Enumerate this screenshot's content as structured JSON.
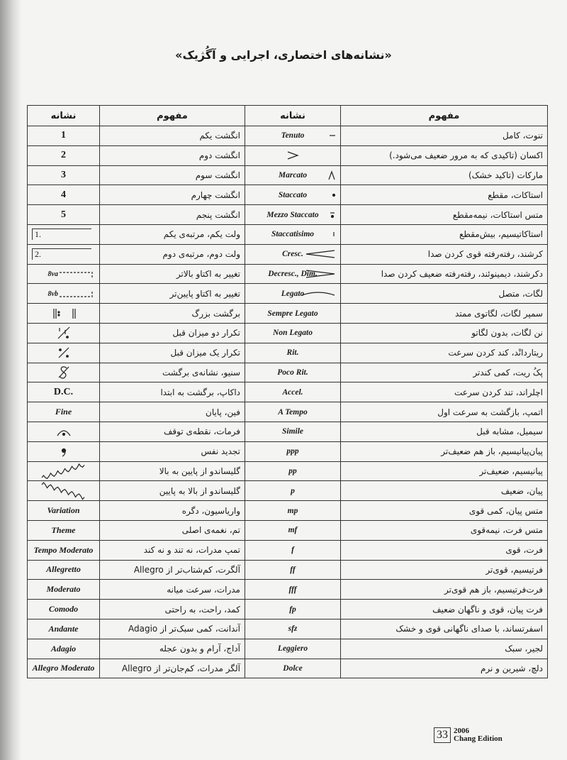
{
  "title": "«نشانه‌های اختصاری، اجرایی و آگُژیک»",
  "table": {
    "headers": [
      "نشانه",
      "مفهوم",
      "نشانه",
      "مفهوم"
    ],
    "rows": [
      {
        "sign_l": "1",
        "concept_l": "انگشت یکم",
        "term_r": "Tenuto",
        "concept_r": "تنوت، کامل"
      },
      {
        "sign_l": "2",
        "concept_l": "انگشت دوم",
        "concept_r": "اکسان (تاکیدی که به مرور ضعیف می‌شود.)"
      },
      {
        "sign_l": "3",
        "concept_l": "انگشت سوم",
        "term_r": "Marcato",
        "concept_r": "مارکات (تاکید خشک)"
      },
      {
        "sign_l": "4",
        "concept_l": "انگشت چهارم",
        "term_r": "Staccato",
        "concept_r": "استاکات، مقطع"
      },
      {
        "sign_l": "5",
        "concept_l": "انگشت پنجم",
        "term_r": "Mezzo Staccato",
        "concept_r": "متس استاکات، نیمه‌مقطع"
      },
      {
        "sign_l": "1.",
        "concept_l": "ولت یکم، مرتبه‌ی یکم",
        "term_r": "Staccatisimo",
        "concept_r": "استاکاتیسیم، بیش‌مقطع"
      },
      {
        "sign_l": "2.",
        "concept_l": "ولت دوم، مرتبه‌ی دوم",
        "term_r": "Cresc.",
        "concept_r": "کرشند، رفته‌رفته قوی کردن صدا"
      },
      {
        "sign_l": "8va",
        "concept_l": "تغییر به اکتاو بالاتر",
        "term_r": "Decresc., Dim.",
        "concept_r": "دکرشند، دیمینوئند، رفته‌رفته ضعیف کردن صدا"
      },
      {
        "sign_l": "8vb",
        "concept_l": "تغییر به اکتاو پایین‌تر",
        "term_r": "Legato",
        "concept_r": "لگات، متصل"
      },
      {
        "concept_l": "برگشت بزرگ",
        "term_r": "Sempre Legato",
        "concept_r": "سمپر لگات، لگاتوی ممتد"
      },
      {
        "concept_l": "تکرار دو میزان قبل",
        "term_r": "Non Legato",
        "concept_r": "نن لگات، بدون لگاتو"
      },
      {
        "concept_l": "تکرار یک میزان قبل",
        "term_r": "Rit.",
        "concept_r": "ریتاردانْد، کند کردن سرعت"
      },
      {
        "concept_l": "سنیو، نشانه‌ی برگشت",
        "term_r": "Poco Rit.",
        "concept_r": "پکُ ریت، کمی کندتر"
      },
      {
        "sign_l": "D.C.",
        "concept_l": "داکاپ، برگشت به ابتدا",
        "term_r": "Accel.",
        "concept_r": "اچلراند، تند کردن سرعت"
      },
      {
        "sign_l": "Fine",
        "concept_l": "فین، پایان",
        "term_r": "A Tempo",
        "concept_r": "اتمپ، بازگشت به سرعت اول"
      },
      {
        "concept_l": "فرمات، نقطه‌ی توقف",
        "term_r": "Simile",
        "concept_r": "سیمیل، مشابه قبل"
      },
      {
        "concept_l": "تجدید نفس",
        "term_r": "ppp",
        "concept_r": "پیان‌پیانیسیم، باز هم ضعیف‌تر"
      },
      {
        "concept_l": "گلیساندو از پایین به بالا",
        "term_r": "pp",
        "concept_r": "پیانیسیم، ضعیف‌تر"
      },
      {
        "concept_l": "گلیساندو از بالا به پایین",
        "term_r": "p",
        "concept_r": "پیان، ضعیف"
      },
      {
        "sign_l": "Variation",
        "concept_l": "واریاسیون، دگره",
        "term_r": "mp",
        "concept_r": "متس پیان، کمی قوی"
      },
      {
        "sign_l": "Theme",
        "concept_l": "تم، نغمه‌ی اصلی",
        "term_r": "mf",
        "concept_r": "متس فرت، نیمه‌قوی"
      },
      {
        "sign_l": "Tempo Moderato",
        "concept_l": "تمپ مدرات، نه تند و نه کند",
        "term_r": "f",
        "concept_r": "فرت، قوی"
      },
      {
        "sign_l": "Allegretto",
        "concept_l": "آلگرت، کم‌شتاب‌تر از Allegro",
        "term_r": "ff",
        "concept_r": "فرتیسیم، قوی‌تر"
      },
      {
        "sign_l": "Moderato",
        "concept_l": "مدرات، سرعت میانه",
        "term_r": "fff",
        "concept_r": "فرت‌فرتیسیم، باز هم قوی‌تر"
      },
      {
        "sign_l": "Comodo",
        "concept_l": "کمد، راحت، به راحتی",
        "term_r": "fp",
        "concept_r": "فرت پیان، قوی و ناگهان ضعیف"
      },
      {
        "sign_l": "Andante",
        "concept_l": "آندانت، کمی سبک‌تر از Adagio",
        "term_r": "sfz",
        "concept_r": "اسفرتساند، با صدای ناگهانی قوی و خشک"
      },
      {
        "sign_l": "Adagio",
        "concept_l": "آداج، آرام و بدون عجله",
        "term_r": "Leggiero",
        "concept_r": "لجیر، سبک"
      },
      {
        "sign_l": "Allegro Moderato",
        "concept_l": "آلگر مدرات، کم‌جان‌تر از Allegro",
        "term_r": "Dolce",
        "concept_r": "دلچ، شیرین و نرم"
      }
    ]
  },
  "footer": {
    "page": "33",
    "year": "2006",
    "publisher": "Chang Edition"
  }
}
